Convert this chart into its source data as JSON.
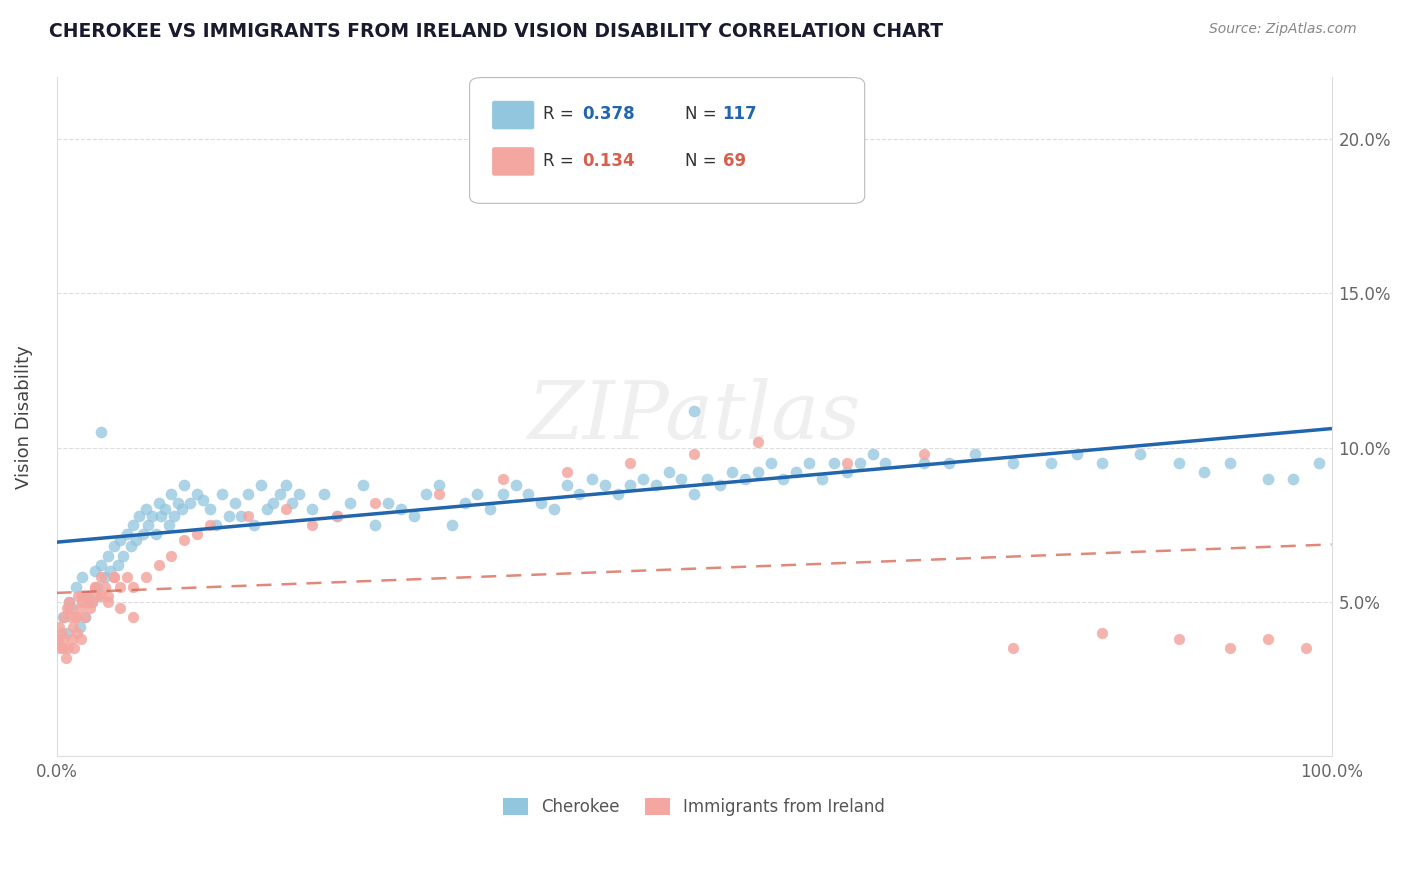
{
  "title": "CHEROKEE VS IMMIGRANTS FROM IRELAND VISION DISABILITY CORRELATION CHART",
  "source": "Source: ZipAtlas.com",
  "ylabel": "Vision Disability",
  "xlim": [
    0,
    100
  ],
  "ylim": [
    0,
    22
  ],
  "ytick_labels": [
    "",
    "5.0%",
    "10.0%",
    "15.0%",
    "20.0%"
  ],
  "ytick_vals": [
    0,
    5,
    10,
    15,
    20
  ],
  "xtick_labels": [
    "0.0%",
    "",
    "",
    "",
    "",
    "",
    "",
    "",
    "",
    "",
    "100.0%"
  ],
  "xtick_vals": [
    0,
    10,
    20,
    30,
    40,
    50,
    60,
    70,
    80,
    90,
    100
  ],
  "blue_color": "#92c5de",
  "pink_color": "#f4a6a0",
  "blue_line_color": "#2166ac",
  "pink_line_color": "#d6604d",
  "watermark_text": "ZIPatlas",
  "cherokee_x": [
    0.5,
    0.8,
    1.0,
    1.2,
    1.5,
    1.8,
    2.0,
    2.2,
    2.5,
    2.8,
    3.0,
    3.2,
    3.5,
    3.8,
    4.0,
    4.2,
    4.5,
    4.8,
    5.0,
    5.2,
    5.5,
    5.8,
    6.0,
    6.2,
    6.5,
    6.8,
    7.0,
    7.2,
    7.5,
    7.8,
    8.0,
    8.2,
    8.5,
    8.8,
    9.0,
    9.2,
    9.5,
    9.8,
    10.0,
    10.5,
    11.0,
    11.5,
    12.0,
    12.5,
    13.0,
    13.5,
    14.0,
    14.5,
    15.0,
    15.5,
    16.0,
    16.5,
    17.0,
    17.5,
    18.0,
    18.5,
    19.0,
    20.0,
    21.0,
    22.0,
    23.0,
    24.0,
    25.0,
    26.0,
    27.0,
    28.0,
    29.0,
    30.0,
    31.0,
    32.0,
    33.0,
    34.0,
    35.0,
    36.0,
    37.0,
    38.0,
    39.0,
    40.0,
    41.0,
    42.0,
    43.0,
    44.0,
    45.0,
    46.0,
    47.0,
    48.0,
    49.0,
    50.0,
    51.0,
    52.0,
    53.0,
    54.0,
    55.0,
    56.0,
    57.0,
    58.0,
    59.0,
    60.0,
    61.0,
    62.0,
    63.0,
    64.0,
    65.0,
    70.0,
    72.0,
    75.0,
    78.0,
    80.0,
    82.0,
    85.0,
    88.0,
    90.0,
    92.0,
    95.0,
    97.0,
    99.0,
    3.5,
    50.0,
    68.0
  ],
  "cherokee_y": [
    4.5,
    4.0,
    5.0,
    4.8,
    5.5,
    4.2,
    5.8,
    4.5,
    5.2,
    5.0,
    6.0,
    5.5,
    6.2,
    5.8,
    6.5,
    6.0,
    6.8,
    6.2,
    7.0,
    6.5,
    7.2,
    6.8,
    7.5,
    7.0,
    7.8,
    7.2,
    8.0,
    7.5,
    7.8,
    7.2,
    8.2,
    7.8,
    8.0,
    7.5,
    8.5,
    7.8,
    8.2,
    8.0,
    8.8,
    8.2,
    8.5,
    8.3,
    8.0,
    7.5,
    8.5,
    7.8,
    8.2,
    7.8,
    8.5,
    7.5,
    8.8,
    8.0,
    8.2,
    8.5,
    8.8,
    8.2,
    8.5,
    8.0,
    8.5,
    7.8,
    8.2,
    8.8,
    7.5,
    8.2,
    8.0,
    7.8,
    8.5,
    8.8,
    7.5,
    8.2,
    8.5,
    8.0,
    8.5,
    8.8,
    8.5,
    8.2,
    8.0,
    8.8,
    8.5,
    9.0,
    8.8,
    8.5,
    8.8,
    9.0,
    8.8,
    9.2,
    9.0,
    8.5,
    9.0,
    8.8,
    9.2,
    9.0,
    9.2,
    9.5,
    9.0,
    9.2,
    9.5,
    9.0,
    9.5,
    9.2,
    9.5,
    9.8,
    9.5,
    9.5,
    9.8,
    9.5,
    9.5,
    9.8,
    9.5,
    9.8,
    9.5,
    9.2,
    9.5,
    9.0,
    9.0,
    9.5,
    10.5,
    11.2,
    9.5
  ],
  "ireland_x": [
    0.1,
    0.2,
    0.3,
    0.4,
    0.5,
    0.6,
    0.7,
    0.8,
    0.9,
    1.0,
    1.1,
    1.2,
    1.3,
    1.4,
    1.5,
    1.6,
    1.7,
    1.8,
    1.9,
    2.0,
    2.2,
    2.4,
    2.6,
    2.8,
    3.0,
    3.2,
    3.5,
    3.8,
    4.0,
    4.5,
    5.0,
    5.5,
    6.0,
    7.0,
    8.0,
    9.0,
    10.0,
    11.0,
    12.0,
    15.0,
    18.0,
    20.0,
    22.0,
    25.0,
    30.0,
    35.0,
    40.0,
    45.0,
    50.0,
    55.0,
    62.0,
    68.0,
    75.0,
    82.0,
    88.0,
    92.0,
    95.0,
    98.0,
    1.0,
    2.0,
    3.0,
    4.0,
    5.0,
    0.5,
    1.5,
    2.5,
    3.5,
    4.5,
    6.0
  ],
  "ireland_y": [
    3.8,
    4.2,
    3.5,
    4.0,
    3.8,
    4.5,
    3.2,
    4.8,
    3.5,
    5.0,
    4.5,
    3.8,
    4.2,
    3.5,
    4.5,
    4.0,
    5.2,
    4.8,
    3.8,
    5.0,
    4.5,
    5.2,
    4.8,
    5.0,
    5.5,
    5.2,
    5.8,
    5.5,
    5.2,
    5.8,
    5.5,
    5.8,
    5.5,
    5.8,
    6.2,
    6.5,
    7.0,
    7.2,
    7.5,
    7.8,
    8.0,
    7.5,
    7.8,
    8.2,
    8.5,
    9.0,
    9.2,
    9.5,
    9.8,
    10.2,
    9.5,
    9.8,
    3.5,
    4.0,
    3.8,
    3.5,
    3.8,
    3.5,
    4.8,
    5.2,
    5.5,
    5.0,
    4.8,
    3.5,
    4.5,
    5.0,
    5.2,
    5.8,
    4.5
  ]
}
